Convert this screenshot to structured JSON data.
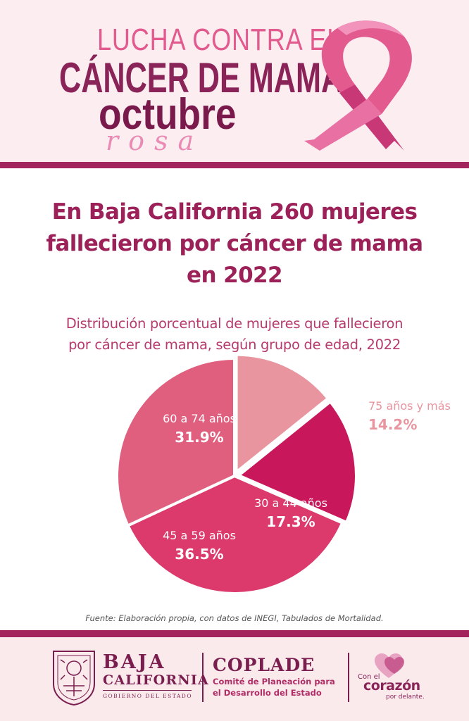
{
  "header": {
    "line1": "LUCHA CONTRA EL",
    "line2": "CÁNCER DE MAMA",
    "line3": "octubre",
    "line4": "rosa",
    "ribbon_icon": "pink-ribbon-icon"
  },
  "main": {
    "title_line1": "En Baja California 260 mujeres",
    "title_line2": "fallecieron por cáncer de mama",
    "title_line3": "en 2022",
    "subtitle_line1": "Distribución porcentual de mujeres que fallecieron",
    "subtitle_line2": "por cáncer de mama, según grupo de edad, 2022",
    "source": "Fuente: Elaboración propia, con datos de INEGI, Tabulados de Mortalidad."
  },
  "chart_data": {
    "type": "pie",
    "title": "Distribución porcentual de mujeres que fallecieron por cáncer de mama, según grupo de edad, 2022",
    "slices": [
      {
        "label": "75 años y más",
        "value": 14.2,
        "display": "14.2%",
        "color": "#e8959f"
      },
      {
        "label": "30 a 44 años",
        "value": 17.3,
        "display": "17.3%",
        "color": "#c8175a"
      },
      {
        "label": "45 a 59 años",
        "value": 36.5,
        "display": "36.5%",
        "color": "#dc3a6c"
      },
      {
        "label": "60 a 74 años",
        "value": 31.9,
        "display": "31.9%",
        "color": "#e05e7e"
      }
    ]
  },
  "footer": {
    "bc_line1": "BAJA",
    "bc_line2": "CALIFORNIA",
    "bc_line3": "GOBIERNO DEL ESTADO",
    "coplade": "COPLADE",
    "coplade_line1": "Comité de Planeación para",
    "coplade_line2": "el Desarrollo del Estado",
    "slogan_1": "Con el",
    "slogan_2": "corazón",
    "slogan_3": "por delante.",
    "seal_icon": "state-seal-icon",
    "heart_icon": "heart-icon"
  },
  "colors": {
    "brand": "#a3235c",
    "title": "#9c2159",
    "subtitle": "#b73a6e",
    "label_light": "#e8959f"
  }
}
